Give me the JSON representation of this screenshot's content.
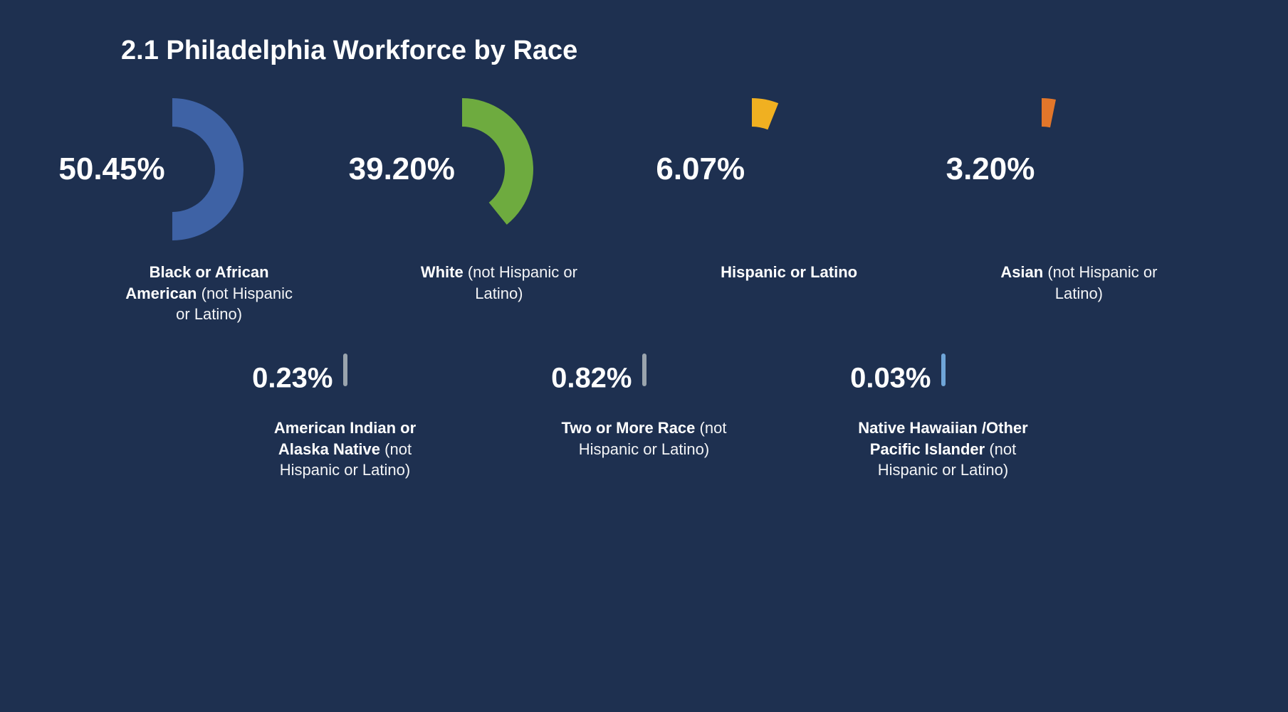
{
  "background_color": "#1e3050",
  "title": {
    "text": "2.1 Philadelphia Workforce by Race",
    "fontsize": 38,
    "color": "#ffffff",
    "weight": 700
  },
  "donut_geom": {
    "outer_r": 100,
    "inner_r": 60,
    "start_deg": 0
  },
  "pct_font": {
    "size_large": 44,
    "size_small": 40,
    "weight": 700,
    "color": "#ffffff"
  },
  "caption_font": {
    "size": 22,
    "color": "#ffffff"
  },
  "row1": [
    {
      "value": 50.45,
      "display": "50.45%",
      "color": "#3e62a5",
      "label_bold": "Black or African American",
      "label_light": "(not Hispanic or Latino)"
    },
    {
      "value": 39.2,
      "display": "39.20%",
      "color": "#6eab3f",
      "label_bold": "White",
      "label_light": "(not Hispanic or Latino)"
    },
    {
      "value": 6.07,
      "display": "6.07%",
      "color": "#f0b021",
      "label_bold": "Hispanic or Latino",
      "label_light": ""
    },
    {
      "value": 3.2,
      "display": "3.20%",
      "color": "#e2762a",
      "label_bold": "Asian",
      "label_light": "(not Hispanic or Latino)"
    }
  ],
  "row2_tick": {
    "width": 6,
    "height": 46
  },
  "row2": [
    {
      "value": 0.23,
      "display": "0.23%",
      "color": "#9aa4ad",
      "label_bold": "American Indian or Alaska Native",
      "label_light": "(not Hispanic or Latino)"
    },
    {
      "value": 0.82,
      "display": "0.82%",
      "color": "#9aa4ad",
      "label_bold": "Two or More Race",
      "label_light": "(not Hispanic or Latino)"
    },
    {
      "value": 0.03,
      "display": "0.03%",
      "color": "#6fa5d8",
      "label_bold": "Native Hawaiian /Other Pacific Islander",
      "label_light": "(not Hispanic or Latino)"
    }
  ]
}
